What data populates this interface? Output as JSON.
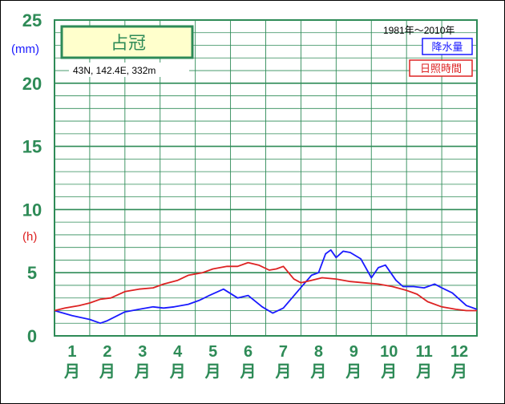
{
  "chart_data": {
    "type": "line",
    "title": "占冠",
    "subtitle": "43N, 142.4E, 332m",
    "period": "1981年～2010年",
    "y_axis": {
      "range": [
        0,
        25
      ],
      "ticks": [
        "0",
        "5",
        "10",
        "15",
        "20",
        "25"
      ],
      "units": [
        "(mm)",
        "(h)"
      ]
    },
    "x_axis": {
      "months": [
        "1",
        "2",
        "3",
        "4",
        "5",
        "6",
        "7",
        "8",
        "9",
        "10",
        "11",
        "12"
      ],
      "month_suffix": "月"
    },
    "series": [
      {
        "name": "降水量",
        "color": "#1a1aff",
        "x": [
          0.0,
          0.5,
          1.0,
          1.3,
          1.5,
          2.0,
          2.4,
          2.8,
          3.1,
          3.4,
          3.8,
          4.1,
          4.4,
          4.8,
          5.2,
          5.5,
          5.9,
          6.2,
          6.5,
          6.9,
          7.3,
          7.5,
          7.7,
          7.85,
          8.0,
          8.2,
          8.4,
          8.7,
          9.0,
          9.2,
          9.4,
          9.7,
          9.9,
          10.2,
          10.5,
          10.8,
          11.0,
          11.3,
          11.7,
          12.0
        ],
        "values": [
          2.0,
          1.6,
          1.3,
          1.0,
          1.2,
          1.9,
          2.1,
          2.3,
          2.2,
          2.3,
          2.5,
          2.8,
          3.2,
          3.7,
          3.0,
          3.2,
          2.3,
          1.8,
          2.2,
          3.5,
          4.8,
          5.0,
          6.5,
          6.8,
          6.2,
          6.7,
          6.6,
          6.1,
          4.6,
          5.4,
          5.6,
          4.4,
          3.9,
          3.9,
          3.8,
          4.1,
          3.8,
          3.4,
          2.4,
          2.1
        ]
      },
      {
        "name": "日照時間",
        "color": "#d22",
        "x": [
          0.0,
          0.3,
          0.7,
          1.0,
          1.3,
          1.6,
          2.0,
          2.4,
          2.8,
          3.1,
          3.5,
          3.8,
          4.2,
          4.5,
          4.9,
          5.2,
          5.5,
          5.8,
          6.1,
          6.3,
          6.5,
          6.8,
          7.0,
          7.3,
          7.6,
          8.0,
          8.4,
          8.8,
          9.2,
          9.6,
          10.0,
          10.3,
          10.6,
          11.0,
          11.4,
          11.7,
          12.0
        ],
        "values": [
          2.0,
          2.2,
          2.4,
          2.6,
          2.9,
          3.0,
          3.5,
          3.7,
          3.8,
          4.1,
          4.4,
          4.8,
          5.0,
          5.3,
          5.5,
          5.5,
          5.8,
          5.6,
          5.2,
          5.3,
          5.5,
          4.5,
          4.2,
          4.4,
          4.6,
          4.5,
          4.3,
          4.2,
          4.1,
          3.9,
          3.6,
          3.3,
          2.7,
          2.3,
          2.1,
          2.0,
          2.0
        ]
      }
    ],
    "grid": true,
    "legend": "top-right"
  }
}
